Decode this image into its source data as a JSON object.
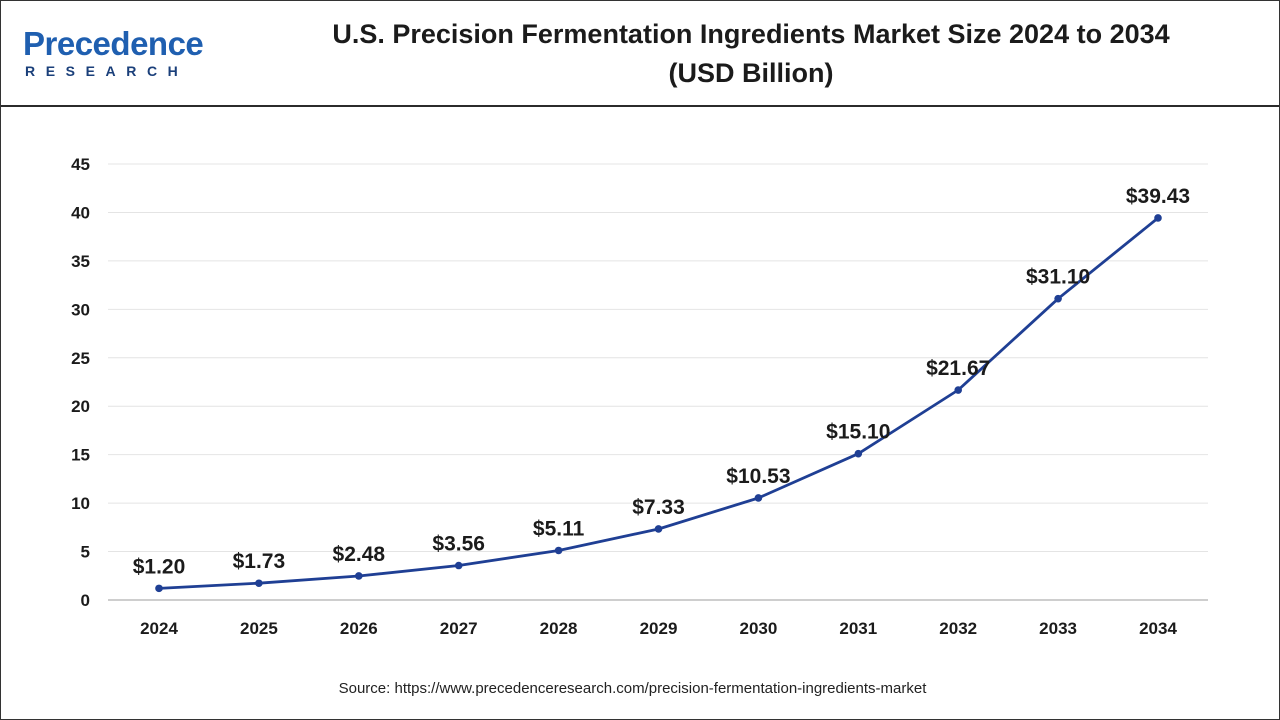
{
  "header": {
    "logo_main": "Precedence",
    "logo_sub": "RESEARCH",
    "title_line1": "U.S. Precision Fermentation Ingredients Market Size 2024 to 2034",
    "title_line2": "(USD Billion)"
  },
  "source": "Source: https://www.precedenceresearch.com/precision-fermentation-ingredients-market",
  "colors": {
    "line": "#1f3f94",
    "grid": "#e4e4e4",
    "text": "#1b1b1b",
    "brand": "#1f5fb0"
  },
  "chart_data": {
    "type": "line",
    "title": "U.S. Precision Fermentation Ingredients Market Size 2024 to 2034 (USD Billion)",
    "xlabel": "",
    "ylabel": "",
    "categories": [
      "2024",
      "2025",
      "2026",
      "2027",
      "2028",
      "2029",
      "2030",
      "2031",
      "2032",
      "2033",
      "2034"
    ],
    "series": [
      {
        "values": [
          1.2,
          1.73,
          2.48,
          3.56,
          5.11,
          7.33,
          10.53,
          15.1,
          21.67,
          31.1,
          39.43
        ],
        "labels": [
          "$1.20",
          "$1.73",
          "$2.48",
          "$3.56",
          "$5.11",
          "$7.33",
          "$10.53",
          "$15.10",
          "$21.67",
          "$31.10",
          "$39.43"
        ]
      }
    ],
    "ylim": [
      0,
      45
    ],
    "yticks": [
      "0",
      "5",
      "10",
      "15",
      "20",
      "25",
      "30",
      "35",
      "40",
      "45"
    ],
    "grid": true,
    "legend": "none"
  }
}
